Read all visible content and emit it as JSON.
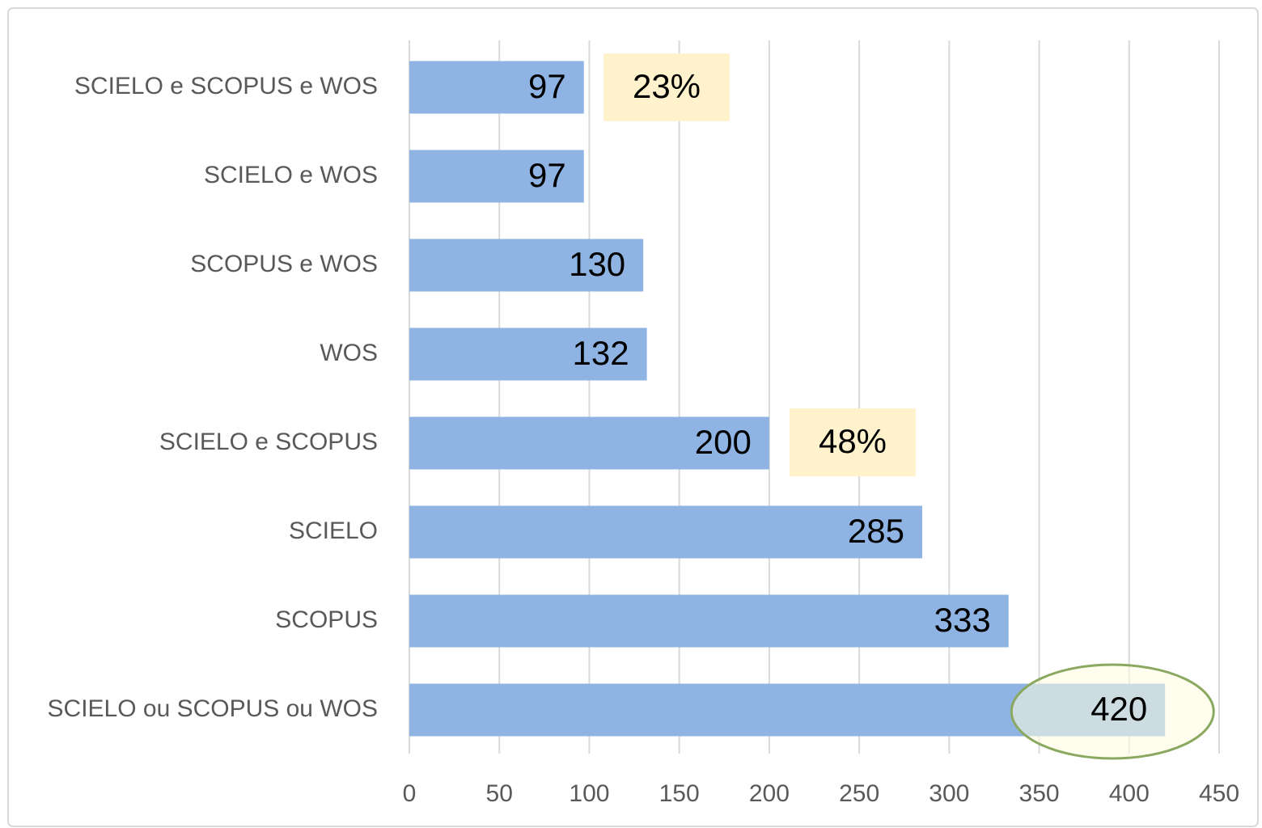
{
  "chart_data": {
    "type": "bar",
    "orientation": "horizontal",
    "categories": [
      "SCIELO e SCOPUS e WOS",
      "SCIELO e WOS",
      "SCOPUS e WOS",
      "WOS",
      "SCIELO e SCOPUS",
      "SCIELO",
      "SCOPUS",
      "SCIELO ou SCOPUS ou WOS"
    ],
    "values": [
      97,
      97,
      130,
      132,
      200,
      285,
      333,
      420
    ],
    "color": "#8fb4e3",
    "xlim": [
      0,
      450
    ],
    "xticks": [
      0,
      50,
      100,
      150,
      200,
      250,
      300,
      350,
      400,
      450
    ],
    "grid": true,
    "annotations": [
      "23%",
      "48%"
    ]
  }
}
